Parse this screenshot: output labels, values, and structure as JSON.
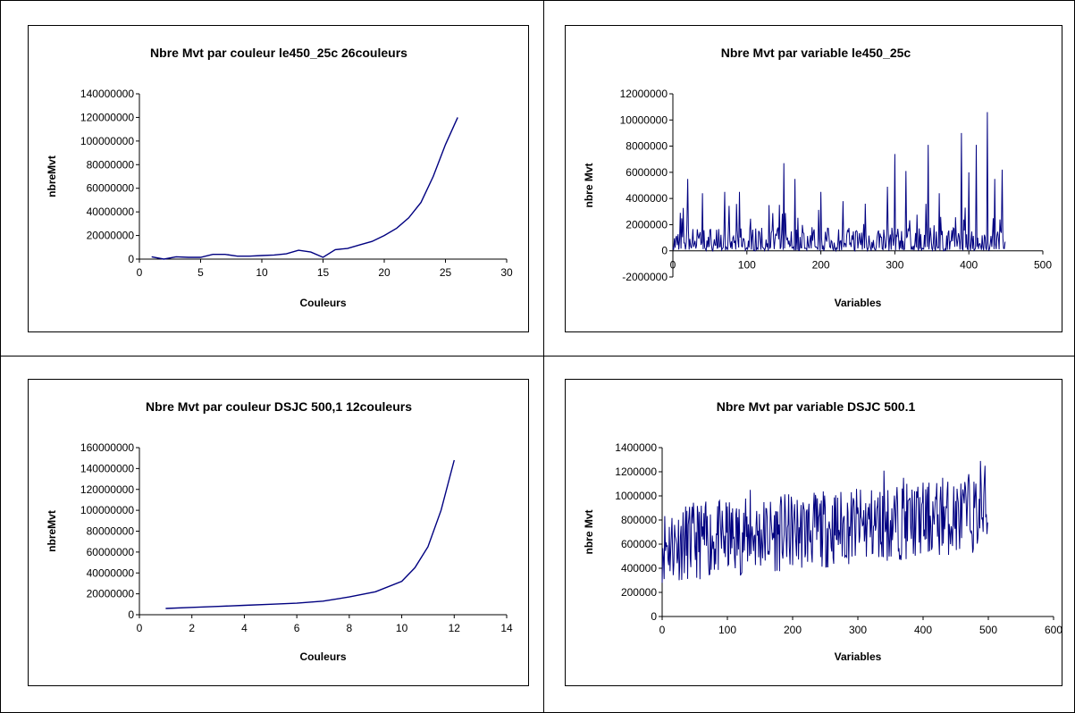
{
  "chart_data": [
    {
      "type": "line",
      "title": "Nbre Mvt par couleur le450_25c 26couleurs",
      "xlabel": "Couleurs",
      "ylabel": "nbreMvt",
      "xlim": [
        0,
        30
      ],
      "ylim": [
        0,
        140000000
      ],
      "xticks": [
        "0",
        "5",
        "10",
        "15",
        "20",
        "25",
        "30"
      ],
      "yticks": [
        "0",
        "20000000",
        "40000000",
        "60000000",
        "80000000",
        "100000000",
        "120000000",
        "140000000"
      ],
      "line_color": "#000080",
      "series": [
        {
          "x": [
            1,
            2,
            3,
            4,
            5,
            6,
            7,
            8,
            9,
            10,
            11,
            12,
            13,
            14,
            15,
            16,
            17,
            18,
            19,
            20,
            21,
            22,
            23,
            24,
            25,
            26
          ],
          "y": [
            2000000,
            0,
            2000000,
            1500000,
            1500000,
            4000000,
            4000000,
            2500000,
            2500000,
            3000000,
            3500000,
            4500000,
            7500000,
            6000000,
            1500000,
            8000000,
            9000000,
            12000000,
            15000000,
            20000000,
            26000000,
            35000000,
            48000000,
            70000000,
            97000000,
            120000000
          ]
        }
      ]
    },
    {
      "type": "line",
      "title": "Nbre Mvt par variable le450_25c",
      "xlabel": "Variables",
      "ylabel": "nbre Mvt",
      "xlim": [
        0,
        500
      ],
      "ylim": [
        -2000000,
        12000000
      ],
      "xticks": [
        "0",
        "100",
        "200",
        "300",
        "400",
        "500"
      ],
      "yticks": [
        "-2000000",
        "0",
        "2000000",
        "4000000",
        "6000000",
        "8000000",
        "10000000",
        "12000000"
      ],
      "line_color": "#000080",
      "series": [
        {
          "n": 450,
          "seed": 7,
          "base": 800000,
          "spread": 1800000,
          "peaks": [
            [
              20,
              5500000
            ],
            [
              40,
              4400000
            ],
            [
              70,
              4500000
            ],
            [
              90,
              4500000
            ],
            [
              130,
              3500000
            ],
            [
              150,
              6700000
            ],
            [
              165,
              5500000
            ],
            [
              200,
              4500000
            ],
            [
              230,
              3800000
            ],
            [
              260,
              3600000
            ],
            [
              290,
              4900000
            ],
            [
              300,
              7400000
            ],
            [
              315,
              6100000
            ],
            [
              345,
              8100000
            ],
            [
              360,
              4400000
            ],
            [
              390,
              9000000
            ],
            [
              400,
              6000000
            ],
            [
              410,
              8100000
            ],
            [
              425,
              10600000
            ],
            [
              435,
              5500000
            ],
            [
              445,
              6200000
            ]
          ]
        }
      ]
    },
    {
      "type": "line",
      "title": "Nbre Mvt par couleur DSJC 500,1 12couleurs",
      "xlabel": "Couleurs",
      "ylabel": "nbreMvt",
      "xlim": [
        0,
        14
      ],
      "ylim": [
        0,
        160000000
      ],
      "xticks": [
        "0",
        "2",
        "4",
        "6",
        "8",
        "10",
        "12",
        "14"
      ],
      "yticks": [
        "0",
        "20000000",
        "40000000",
        "60000000",
        "80000000",
        "100000000",
        "120000000",
        "140000000",
        "160000000"
      ],
      "line_color": "#000080",
      "series": [
        {
          "x": [
            1,
            2,
            3,
            4,
            5,
            6,
            7,
            8,
            9,
            10,
            10.5,
            11,
            11.5,
            12
          ],
          "y": [
            6000000,
            7000000,
            8000000,
            9000000,
            10000000,
            11000000,
            13000000,
            17000000,
            22000000,
            32000000,
            45000000,
            65000000,
            100000000,
            148000000
          ]
        }
      ]
    },
    {
      "type": "line",
      "title": "Nbre Mvt par variable DSJC 500.1",
      "xlabel": "Variables",
      "ylabel": "nbre Mvt",
      "xlim": [
        0,
        600
      ],
      "ylim": [
        0,
        1400000
      ],
      "xticks": [
        "0",
        "100",
        "200",
        "300",
        "400",
        "500",
        "600"
      ],
      "yticks": [
        "0",
        "200000",
        "400000",
        "600000",
        "800000",
        "1000000",
        "1200000",
        "1400000"
      ],
      "line_color": "#000080",
      "series": [
        {
          "n": 500,
          "seed": 11,
          "base_start": 600000,
          "base_end": 850000,
          "spread": 320000,
          "peaks": [
            [
              135,
              1050000
            ],
            [
              340,
              1210000
            ],
            [
              370,
              1150000
            ],
            [
              430,
              1150000
            ],
            [
              470,
              1180000
            ],
            [
              488,
              1290000
            ],
            [
              495,
              1250000
            ]
          ]
        }
      ]
    }
  ]
}
